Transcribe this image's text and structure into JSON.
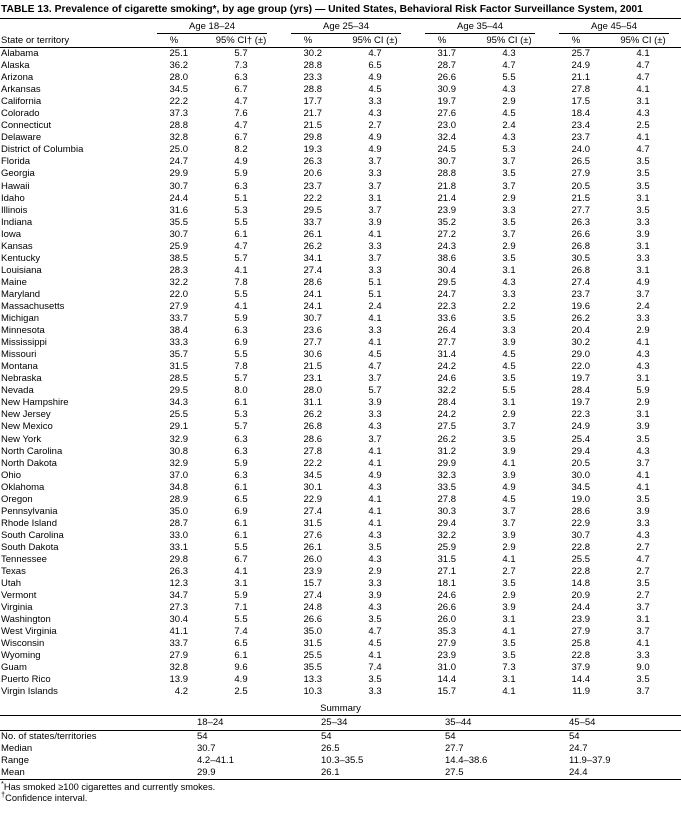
{
  "title": "TABLE 13. Prevalence of cigarette smoking*, by age group (yrs) — United States, Behavioral Risk Factor Surveillance System, 2001",
  "header": {
    "state_col": "State or territory",
    "age_groups": [
      "Age 18–24",
      "Age 25–34",
      "Age 35–44",
      "Age 45–54"
    ],
    "pct_label": "%",
    "ci_labels": [
      "95% CI† (±)",
      "95% CI (±)",
      "95% CI (±)",
      "95% CI (±)"
    ]
  },
  "rows": [
    [
      "Alabama",
      "25.1",
      "5.7",
      "30.2",
      "4.7",
      "31.7",
      "4.3",
      "25.7",
      "4.1"
    ],
    [
      "Alaska",
      "36.2",
      "7.3",
      "28.8",
      "6.5",
      "28.7",
      "4.7",
      "24.9",
      "4.7"
    ],
    [
      "Arizona",
      "28.0",
      "6.3",
      "23.3",
      "4.9",
      "26.6",
      "5.5",
      "21.1",
      "4.7"
    ],
    [
      "Arkansas",
      "34.5",
      "6.7",
      "28.8",
      "4.5",
      "30.9",
      "4.3",
      "27.8",
      "4.1"
    ],
    [
      "California",
      "22.2",
      "4.7",
      "17.7",
      "3.3",
      "19.7",
      "2.9",
      "17.5",
      "3.1"
    ],
    [
      "Colorado",
      "37.3",
      "7.6",
      "21.7",
      "4.3",
      "27.6",
      "4.5",
      "18.4",
      "4.3"
    ],
    [
      "Connecticut",
      "28.8",
      "4.7",
      "21.5",
      "2.7",
      "23.0",
      "2.4",
      "23.4",
      "2.5"
    ],
    [
      "Delaware",
      "32.8",
      "6.7",
      "29.8",
      "4.9",
      "32.4",
      "4.3",
      "23.7",
      "4.1"
    ],
    [
      "District of Columbia",
      "25.0",
      "8.2",
      "19.3",
      "4.9",
      "24.5",
      "5.3",
      "24.0",
      "4.7"
    ],
    [
      "Florida",
      "24.7",
      "4.9",
      "26.3",
      "3.7",
      "30.7",
      "3.7",
      "26.5",
      "3.5"
    ],
    [
      "Georgia",
      "29.9",
      "5.9",
      "20.6",
      "3.3",
      "28.8",
      "3.5",
      "27.9",
      "3.5"
    ],
    [
      "Hawaii",
      "30.7",
      "6.3",
      "23.7",
      "3.7",
      "21.8",
      "3.7",
      "20.5",
      "3.5"
    ],
    [
      "Idaho",
      "24.4",
      "5.1",
      "22.2",
      "3.1",
      "21.4",
      "2.9",
      "21.5",
      "3.1"
    ],
    [
      "Illinois",
      "31.6",
      "5.3",
      "29.5",
      "3.7",
      "23.9",
      "3.3",
      "27.7",
      "3.5"
    ],
    [
      "Indiana",
      "35.5",
      "5.5",
      "33.7",
      "3.9",
      "35.2",
      "3.5",
      "26.3",
      "3.3"
    ],
    [
      "Iowa",
      "30.7",
      "6.1",
      "26.1",
      "4.1",
      "27.2",
      "3.7",
      "26.6",
      "3.9"
    ],
    [
      "Kansas",
      "25.9",
      "4.7",
      "26.2",
      "3.3",
      "24.3",
      "2.9",
      "26.8",
      "3.1"
    ],
    [
      "Kentucky",
      "38.5",
      "5.7",
      "34.1",
      "3.7",
      "38.6",
      "3.5",
      "30.5",
      "3.3"
    ],
    [
      "Louisiana",
      "28.3",
      "4.1",
      "27.4",
      "3.3",
      "30.4",
      "3.1",
      "26.8",
      "3.1"
    ],
    [
      "Maine",
      "32.2",
      "7.8",
      "28.6",
      "5.1",
      "29.5",
      "4.3",
      "27.4",
      "4.9"
    ],
    [
      "Maryland",
      "22.0",
      "5.5",
      "24.1",
      "5.1",
      "24.7",
      "3.3",
      "23.7",
      "3.7"
    ],
    [
      "Massachusetts",
      "27.9",
      "4.1",
      "24.1",
      "2.4",
      "22.3",
      "2.2",
      "19.6",
      "2.4"
    ],
    [
      "Michigan",
      "33.7",
      "5.9",
      "30.7",
      "4.1",
      "33.6",
      "3.5",
      "26.2",
      "3.3"
    ],
    [
      "Minnesota",
      "38.4",
      "6.3",
      "23.6",
      "3.3",
      "26.4",
      "3.3",
      "20.4",
      "2.9"
    ],
    [
      "Mississippi",
      "33.3",
      "6.9",
      "27.7",
      "4.1",
      "27.7",
      "3.9",
      "30.2",
      "4.1"
    ],
    [
      "Missouri",
      "35.7",
      "5.5",
      "30.6",
      "4.5",
      "31.4",
      "4.5",
      "29.0",
      "4.3"
    ],
    [
      "Montana",
      "31.5",
      "7.8",
      "21.5",
      "4.7",
      "24.2",
      "4.5",
      "22.0",
      "4.3"
    ],
    [
      "Nebraska",
      "28.5",
      "5.7",
      "23.1",
      "3.7",
      "24.6",
      "3.5",
      "19.7",
      "3.1"
    ],
    [
      "Nevada",
      "29.5",
      "8.0",
      "28.0",
      "5.7",
      "32.2",
      "5.5",
      "28.4",
      "5.9"
    ],
    [
      "New Hampshire",
      "34.3",
      "6.1",
      "31.1",
      "3.9",
      "28.4",
      "3.1",
      "19.7",
      "2.9"
    ],
    [
      "New Jersey",
      "25.5",
      "5.3",
      "26.2",
      "3.3",
      "24.2",
      "2.9",
      "22.3",
      "3.1"
    ],
    [
      "New Mexico",
      "29.1",
      "5.7",
      "26.8",
      "4.3",
      "27.5",
      "3.7",
      "24.9",
      "3.9"
    ],
    [
      "New York",
      "32.9",
      "6.3",
      "28.6",
      "3.7",
      "26.2",
      "3.5",
      "25.4",
      "3.5"
    ],
    [
      "North Carolina",
      "30.8",
      "6.3",
      "27.8",
      "4.1",
      "31.2",
      "3.9",
      "29.4",
      "4.3"
    ],
    [
      "North Dakota",
      "32.9",
      "5.9",
      "22.2",
      "4.1",
      "29.9",
      "4.1",
      "20.5",
      "3.7"
    ],
    [
      "Ohio",
      "37.0",
      "6.3",
      "34.5",
      "4.9",
      "32.3",
      "3.9",
      "30.0",
      "4.1"
    ],
    [
      "Oklahoma",
      "34.8",
      "6.1",
      "30.1",
      "4.3",
      "33.5",
      "4.9",
      "34.5",
      "4.1"
    ],
    [
      "Oregon",
      "28.9",
      "6.5",
      "22.9",
      "4.1",
      "27.8",
      "4.5",
      "19.0",
      "3.5"
    ],
    [
      "Pennsylvania",
      "35.0",
      "6.9",
      "27.4",
      "4.1",
      "30.3",
      "3.7",
      "28.6",
      "3.9"
    ],
    [
      "Rhode Island",
      "28.7",
      "6.1",
      "31.5",
      "4.1",
      "29.4",
      "3.7",
      "22.9",
      "3.3"
    ],
    [
      "South Carolina",
      "33.0",
      "6.1",
      "27.6",
      "4.3",
      "32.2",
      "3.9",
      "30.7",
      "4.3"
    ],
    [
      "South Dakota",
      "33.1",
      "5.5",
      "26.1",
      "3.5",
      "25.9",
      "2.9",
      "22.8",
      "2.7"
    ],
    [
      "Tennessee",
      "29.8",
      "6.7",
      "26.0",
      "4.3",
      "31.5",
      "4.1",
      "25.5",
      "4.7"
    ],
    [
      "Texas",
      "26.3",
      "4.1",
      "23.9",
      "2.9",
      "27.1",
      "2.7",
      "22.8",
      "2.7"
    ],
    [
      "Utah",
      "12.3",
      "3.1",
      "15.7",
      "3.3",
      "18.1",
      "3.5",
      "14.8",
      "3.5"
    ],
    [
      "Vermont",
      "34.7",
      "5.9",
      "27.4",
      "3.9",
      "24.6",
      "2.9",
      "20.9",
      "2.7"
    ],
    [
      "Virginia",
      "27.3",
      "7.1",
      "24.8",
      "4.3",
      "26.6",
      "3.9",
      "24.4",
      "3.7"
    ],
    [
      "Washington",
      "30.4",
      "5.5",
      "26.6",
      "3.5",
      "26.0",
      "3.1",
      "23.9",
      "3.1"
    ],
    [
      "West Virginia",
      "41.1",
      "7.4",
      "35.0",
      "4.7",
      "35.3",
      "4.1",
      "27.9",
      "3.7"
    ],
    [
      "Wisconsin",
      "33.7",
      "6.5",
      "31.5",
      "4.5",
      "27.9",
      "3.5",
      "25.8",
      "4.1"
    ],
    [
      "Wyoming",
      "27.9",
      "6.1",
      "25.5",
      "4.1",
      "23.9",
      "3.5",
      "22.8",
      "3.3"
    ],
    [
      "Guam",
      "32.8",
      "9.6",
      "35.5",
      "7.4",
      "31.0",
      "7.3",
      "37.9",
      "9.0"
    ],
    [
      "Puerto Rico",
      "13.9",
      "4.9",
      "13.3",
      "3.5",
      "14.4",
      "3.1",
      "14.4",
      "3.5"
    ],
    [
      "Virgin Islands",
      "4.2",
      "2.5",
      "10.3",
      "3.3",
      "15.7",
      "4.1",
      "11.9",
      "3.7"
    ]
  ],
  "summary": {
    "title": "Summary",
    "col_headers": [
      "18–24",
      "25–34",
      "35–44",
      "45–54"
    ],
    "rows": [
      [
        "No. of states/territories",
        "54",
        "54",
        "54",
        "54"
      ],
      [
        "Median",
        "30.7",
        "26.5",
        "27.7",
        "24.7"
      ],
      [
        "Range",
        "4.2–41.1",
        "10.3–35.5",
        "14.4–38.6",
        "11.9–37.9"
      ],
      [
        "Mean",
        "29.9",
        "26.1",
        "27.5",
        "24.4"
      ]
    ]
  },
  "footnotes": [
    {
      "marker": "*",
      "text": "Has smoked ≥100 cigarettes and currently smokes."
    },
    {
      "marker": "†",
      "text": "Confidence interval."
    }
  ]
}
